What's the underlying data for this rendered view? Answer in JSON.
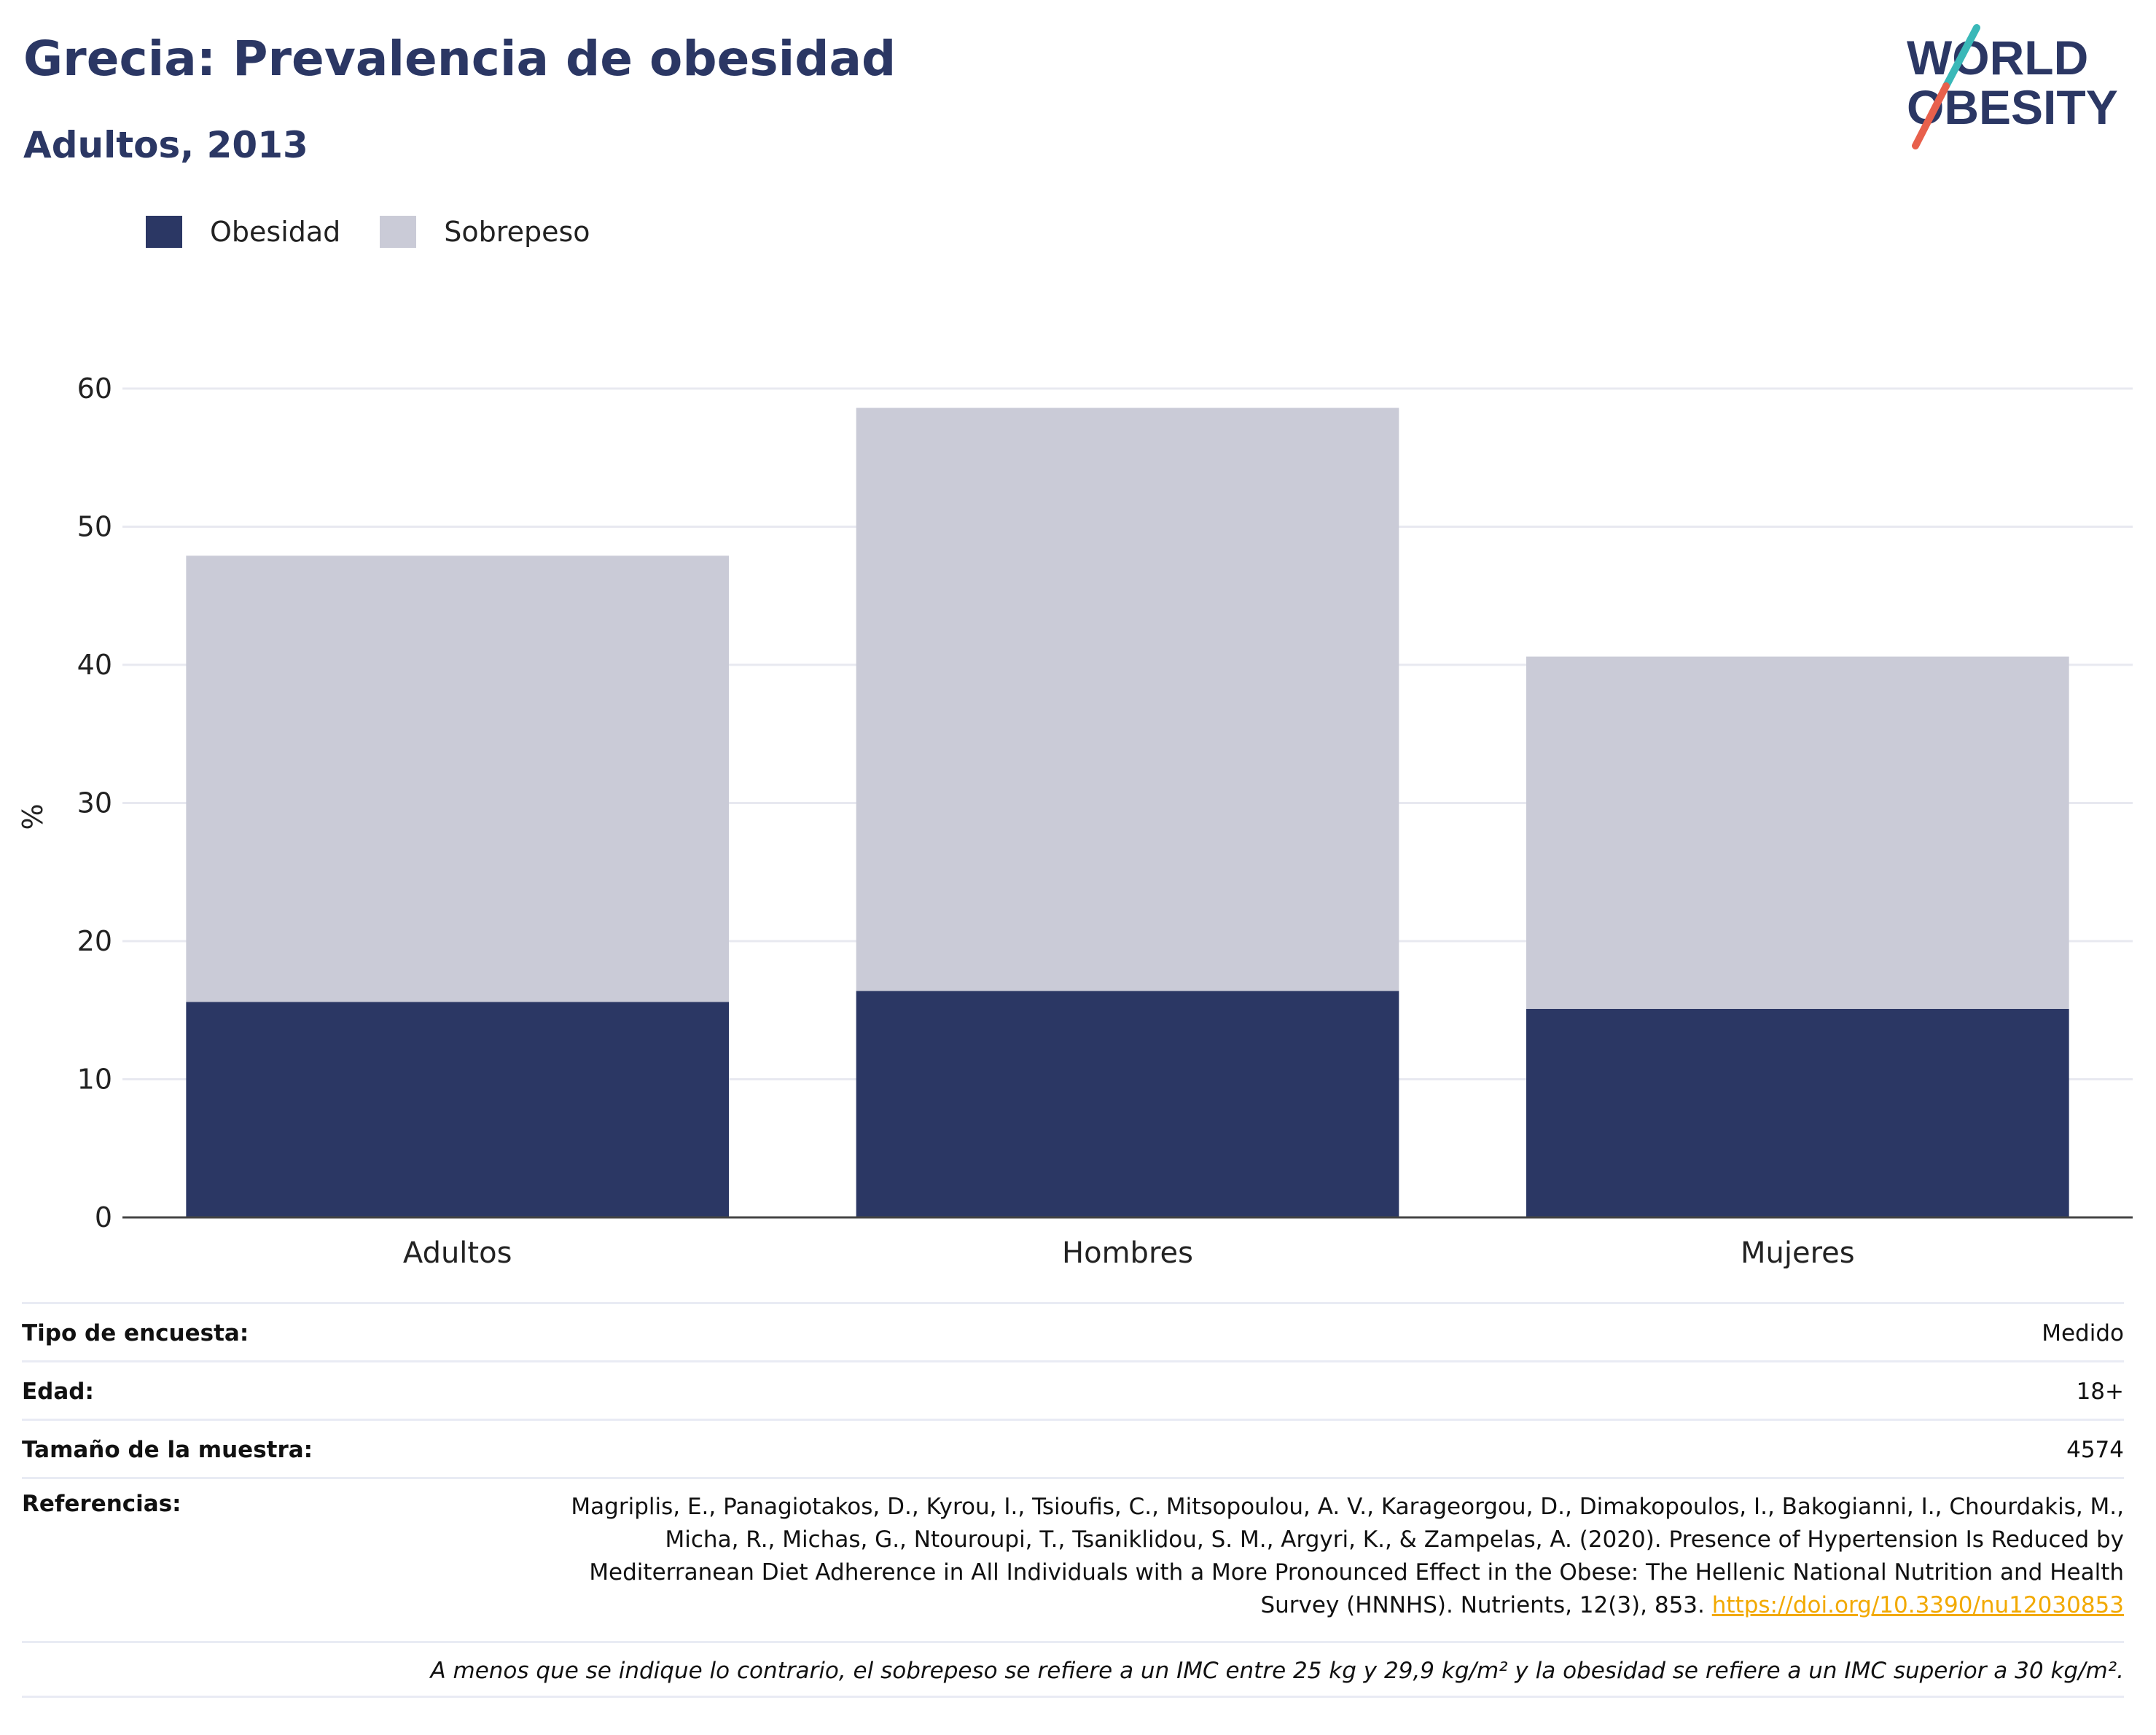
{
  "header": {
    "title": "Grecia: Prevalencia de obesidad",
    "subtitle": "Adultos, 2013"
  },
  "logo": {
    "line1": "WORLD",
    "line2": "OBESITY",
    "colors": {
      "text": "#2b3764",
      "slash_top": "#3ab8b8",
      "slash_bottom": "#e8604c"
    }
  },
  "legend": [
    {
      "label": "Obesidad",
      "color": "#2b3764"
    },
    {
      "label": "Sobrepeso",
      "color": "#cacbd7"
    }
  ],
  "chart_data": {
    "type": "bar",
    "stacked": true,
    "categories": [
      "Adultos",
      "Hombres",
      "Mujeres"
    ],
    "series": [
      {
        "name": "Obesidad",
        "values": [
          15.6,
          16.4,
          15.1
        ],
        "color": "#2b3764"
      },
      {
        "name": "Sobrepeso",
        "values": [
          32.3,
          42.2,
          25.5
        ],
        "color": "#cacbd7"
      }
    ],
    "ylabel": "%",
    "ylim": [
      0,
      62
    ],
    "yticks": [
      0,
      10,
      20,
      30,
      40,
      50,
      60
    ],
    "grid": true,
    "legend_position": "top-left"
  },
  "info": {
    "survey_type_label": "Tipo de encuesta:",
    "survey_type_value": "Medido",
    "age_label": "Edad:",
    "age_value": "18+",
    "sample_label": "Tamaño de la muestra:",
    "sample_value": "4574",
    "refs_label": "Referencias:",
    "refs_text": "Magriplis, E., Panagiotakos, D., Kyrou, I., Tsioufis, C., Mitsopoulou, A. V., Karageorgou, D., Dimakopoulos, I., Bakogianni, I., Chourdakis, M., Micha, R., Michas, G., Ntouroupi, T., Tsaniklidou, S. M., Argyri, K., & Zampelas, A. (2020). Presence of Hypertension Is Reduced by Mediterranean Diet Adherence in All Individuals with a More Pronounced Effect in the Obese: The Hellenic National Nutrition and Health Survey (HNNHS). Nutrients, 12(3), 853.",
    "refs_link": "https://doi.org/10.3390/nu12030853",
    "footnote": "A menos que se indique lo contrario, el sobrepeso se refiere a un IMC entre 25 kg y 29,9 kg/m² y la obesidad se refiere a un IMC superior a 30 kg/m²."
  }
}
